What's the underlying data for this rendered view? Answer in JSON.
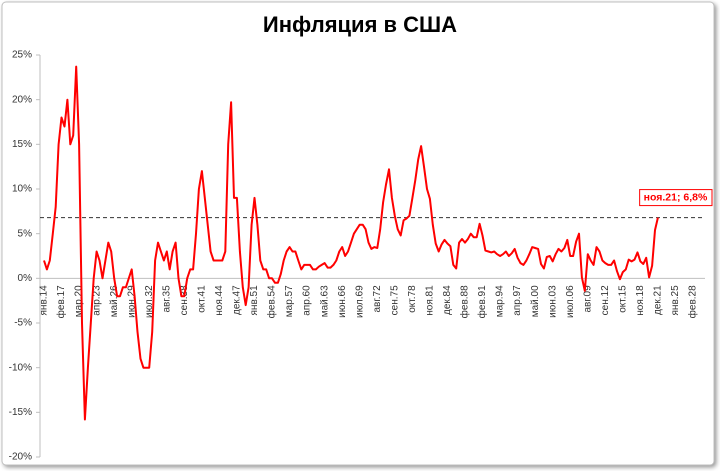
{
  "chart_data": {
    "type": "line",
    "title": "Инфляция в США",
    "categories": [
      "янв.14",
      null,
      null,
      null,
      null,
      null,
      "фев.17",
      null,
      null,
      null,
      null,
      null,
      "мар.20",
      null,
      null,
      null,
      null,
      null,
      "апр.23",
      null,
      null,
      null,
      null,
      null,
      "май.26",
      null,
      null,
      null,
      null,
      null,
      "июн.29",
      null,
      null,
      null,
      null,
      null,
      "июл.32",
      null,
      null,
      null,
      null,
      null,
      "авг.35",
      null,
      null,
      null,
      null,
      null,
      "сен.38",
      null,
      null,
      null,
      null,
      null,
      "окт.41",
      null,
      null,
      null,
      null,
      null,
      "ноя.44",
      null,
      null,
      null,
      null,
      null,
      "дек.47",
      null,
      null,
      null,
      null,
      null,
      "янв.51",
      null,
      null,
      null,
      null,
      null,
      "фев.54",
      null,
      null,
      null,
      null,
      null,
      "мар.57",
      null,
      null,
      null,
      null,
      null,
      "апр.60",
      null,
      null,
      null,
      null,
      null,
      "май.63",
      null,
      null,
      null,
      null,
      null,
      "июн.66",
      null,
      null,
      null,
      null,
      null,
      "июл.69",
      null,
      null,
      null,
      null,
      null,
      "авг.72",
      null,
      null,
      null,
      null,
      null,
      "сен.75",
      null,
      null,
      null,
      null,
      null,
      "окт.78",
      null,
      null,
      null,
      null,
      null,
      "ноя.81",
      null,
      null,
      null,
      null,
      null,
      "дек.84",
      null,
      null,
      null,
      null,
      null,
      "фев.88",
      null,
      null,
      null,
      null,
      null,
      "фев.91",
      null,
      null,
      null,
      null,
      null,
      "мар.94",
      null,
      null,
      null,
      null,
      null,
      "апр.97",
      null,
      null,
      null,
      null,
      null,
      "май.00",
      null,
      null,
      null,
      null,
      null,
      "июн.03",
      null,
      null,
      null,
      null,
      null,
      "июл.06",
      null,
      null,
      null,
      null,
      null,
      "авг.09",
      null,
      null,
      null,
      null,
      null,
      "сен.12",
      null,
      null,
      null,
      null,
      null,
      "окт.15",
      null,
      null,
      null,
      null,
      null,
      "ноя.18",
      null,
      null,
      null,
      null,
      null,
      "дек.21",
      null,
      null,
      null,
      null,
      null,
      "янв.25",
      null,
      null,
      null,
      null,
      null,
      "фев.28"
    ],
    "series": [
      {
        "color": "#ff0000",
        "values": [
          2,
          1,
          2,
          5,
          8,
          15,
          18,
          17,
          20,
          15,
          16,
          23.7,
          15,
          -5,
          -15.8,
          -10,
          -5,
          0,
          3,
          2,
          0,
          2,
          4,
          3,
          0,
          -2,
          -2,
          -1,
          -1,
          0,
          1,
          -2,
          -6,
          -9,
          -10,
          -10,
          -10,
          -6,
          2,
          4,
          3,
          2,
          3,
          1,
          3,
          4,
          0,
          -2,
          -2,
          0,
          1,
          1,
          5,
          10,
          12,
          9,
          6,
          3,
          2,
          2,
          2,
          2,
          3,
          15,
          19.7,
          9,
          9,
          3,
          -1,
          -3,
          -1,
          6,
          9,
          6,
          2,
          1,
          1,
          0,
          0,
          -0.5,
          -0.5,
          0.5,
          2,
          3,
          3.5,
          3,
          3,
          2,
          1,
          1.5,
          1.5,
          1.5,
          1,
          1,
          1.3,
          1.5,
          1.7,
          1.2,
          1.2,
          1.5,
          2,
          3,
          3.5,
          2.5,
          3,
          4,
          5,
          5.5,
          6,
          6,
          5.5,
          4,
          3.3,
          3.5,
          3.4,
          5.5,
          8.5,
          10.5,
          12.2,
          9,
          7,
          5.5,
          4.8,
          6.5,
          6.7,
          7,
          9,
          11,
          13.3,
          14.8,
          12.5,
          10,
          8.9,
          6,
          3.9,
          3,
          3.8,
          4.3,
          3.9,
          3.6,
          1.5,
          1.1,
          4,
          4.4,
          4,
          4.4,
          5,
          4.6,
          4.6,
          6.1,
          4.8,
          3.1,
          3,
          2.9,
          3,
          2.7,
          2.5,
          2.7,
          3,
          2.5,
          2.8,
          3.3,
          2.3,
          1.7,
          1.5,
          2,
          2.7,
          3.5,
          3.4,
          3.3,
          1.6,
          1.1,
          2.4,
          2.5,
          1.9,
          2.7,
          3.3,
          3,
          3.4,
          4.3,
          2.5,
          2.5,
          4.1,
          5,
          0.1,
          -1.4,
          2.7,
          2,
          1.5,
          3.5,
          3,
          2,
          1.7,
          1.5,
          1.5,
          2,
          0.8,
          -0.1,
          0.7,
          1,
          2.1,
          1.9,
          2.1,
          2.9,
          1.9,
          1.6,
          2.3,
          0.1,
          1.4,
          5.4,
          6.8,
          null,
          null,
          null,
          null,
          null,
          null,
          null,
          null,
          null,
          null,
          null,
          null
        ]
      }
    ],
    "ylim": [
      -20,
      25
    ],
    "yticks": [
      {
        "value": -20,
        "label": "-20%"
      },
      {
        "value": -15,
        "label": "-15%"
      },
      {
        "value": -10,
        "label": "-10%"
      },
      {
        "value": -5,
        "label": "-5%"
      },
      {
        "value": 0,
        "label": "0%"
      },
      {
        "value": 5,
        "label": "5%"
      },
      {
        "value": 10,
        "label": "10%"
      },
      {
        "value": 15,
        "label": "15%"
      },
      {
        "value": 20,
        "label": "20%"
      },
      {
        "value": 25,
        "label": "25%"
      }
    ],
    "reference_line": 6.8,
    "annotation": "ноя.21; 6,8%",
    "grid": false
  }
}
